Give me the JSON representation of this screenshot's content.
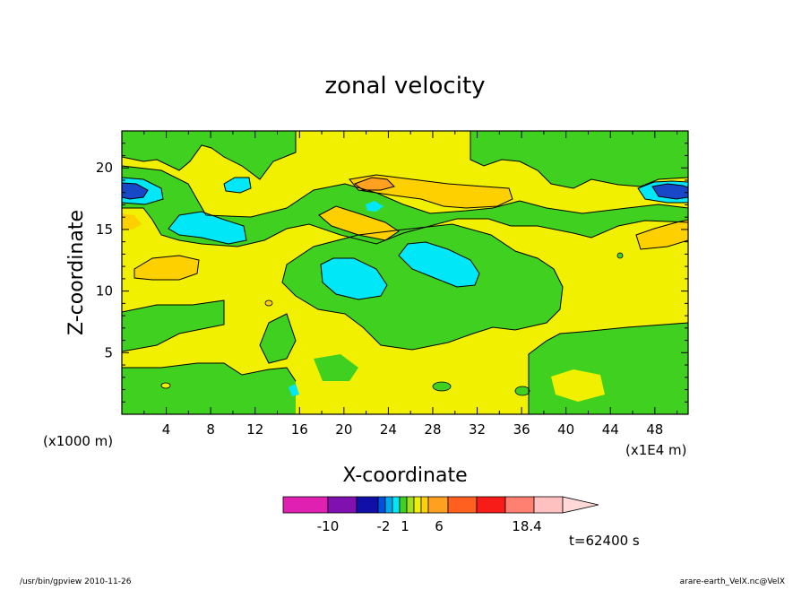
{
  "chart_data": {
    "type": "heatmap",
    "title": "zonal velocity",
    "xlabel": "X-coordinate",
    "ylabel": "Z-coordinate",
    "x_unit_label": "(x1E4 m)",
    "y_unit_label": "(x1000 m)",
    "xlim": [
      0,
      51
    ],
    "ylim": [
      0,
      23
    ],
    "x_ticks": [
      "4",
      "8",
      "12",
      "16",
      "20",
      "24",
      "28",
      "32",
      "36",
      "40",
      "44",
      "48"
    ],
    "y_ticks": [
      "5",
      "10",
      "15",
      "20"
    ],
    "time_label": "t=62400 s",
    "colorbar": {
      "colors": [
        "#e020b0",
        "#8010b0",
        "#1010a8",
        "#0050e0",
        "#00a8f0",
        "#00e8f8",
        "#40d020",
        "#a0e020",
        "#f0f000",
        "#ffd000",
        "#ffa020",
        "#ff6020",
        "#f81c18",
        "#ff8070",
        "#ffc0c0"
      ],
      "extend_color": "#ffd8d8",
      "labels": [
        "-10",
        "-2",
        "1",
        "6",
        "18.4"
      ],
      "label_positions": [
        -10,
        -2,
        1,
        6,
        18.4
      ]
    },
    "regions": [
      {
        "value": -11,
        "color": "#1848c8",
        "desc": "strong easterly cores near z=18 at x≈1 and x≈49"
      },
      {
        "value": -3,
        "color": "#00e8f8",
        "desc": "weak negative patches"
      },
      {
        "value": 0,
        "color": "#40d020",
        "desc": "near zero"
      },
      {
        "value": 1,
        "color": "#f0f000",
        "desc": "weak positive"
      },
      {
        "value": 4,
        "color": "#ffd000",
        "desc": "positive"
      },
      {
        "value": 8,
        "color": "#ffa020",
        "desc": "stronger positive core near x=22,z=19"
      }
    ]
  },
  "footer": {
    "left": "/usr/bin/gpview   2010-11-26",
    "right": "arare-earth_VelX.nc@VelX"
  }
}
